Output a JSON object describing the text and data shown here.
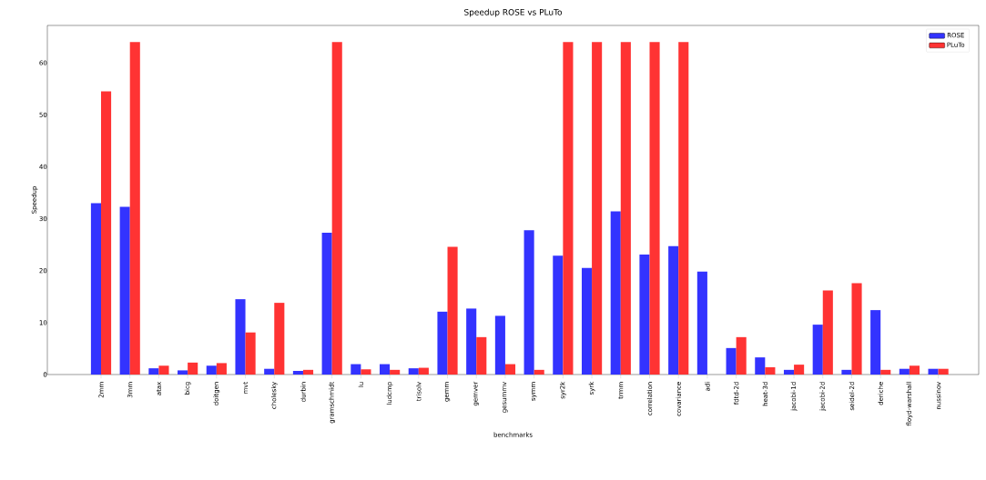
{
  "chart_data": {
    "type": "bar",
    "title": "Speedup ROSE vs PLuTo",
    "xlabel": "benchmarks",
    "ylabel": "Speedup",
    "categories": [
      "2mm",
      "3mm",
      "atax",
      "bicg",
      "doitgen",
      "mvt",
      "cholesky",
      "durbin",
      "gramschmidt",
      "lu",
      "ludcmp",
      "trisolv",
      "gemm",
      "gemver",
      "gesummv",
      "symm",
      "syr2k",
      "syrk",
      "trmm",
      "correlation",
      "covariance",
      "adi",
      "fdtd-2d",
      "heat-3d",
      "jacobi-1d",
      "jacobi-2d",
      "seidel-2d",
      "deriche",
      "floyd-warshall",
      "nussinov"
    ],
    "series": [
      {
        "name": "ROSE",
        "color": "#3333ff",
        "values": [
          33.0,
          32.3,
          1.2,
          0.8,
          1.7,
          14.5,
          1.1,
          0.7,
          27.3,
          2.0,
          2.0,
          1.2,
          12.1,
          12.7,
          11.3,
          27.8,
          22.9,
          20.5,
          31.4,
          23.1,
          24.7,
          19.8,
          5.1,
          3.3,
          0.9,
          9.6,
          0.9,
          12.4,
          1.1,
          1.1
        ]
      },
      {
        "name": "PLuTo",
        "color": "#ff3333",
        "values": [
          54.5,
          64,
          1.7,
          2.3,
          2.2,
          8.1,
          13.8,
          0.9,
          64,
          1.0,
          0.9,
          1.3,
          24.6,
          7.2,
          2.0,
          0.9,
          64,
          64,
          64,
          64,
          64,
          0,
          7.2,
          1.4,
          1.9,
          16.2,
          17.6,
          0.9,
          1.7,
          1.1
        ]
      }
    ],
    "ylim": [
      0,
      67.2
    ],
    "yticks": [
      0,
      10,
      20,
      30,
      40,
      50,
      60
    ],
    "legend": "top right"
  }
}
